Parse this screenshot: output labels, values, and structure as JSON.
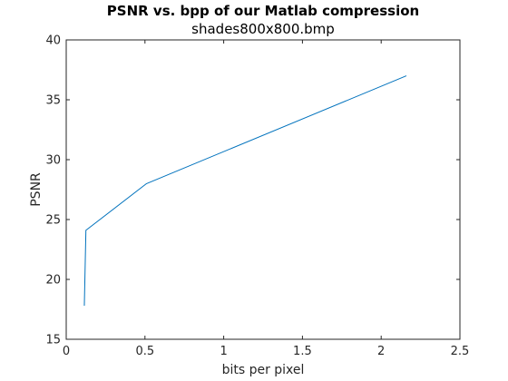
{
  "chart_data": {
    "type": "line",
    "title": "PSNR vs. bpp of our Matlab compression",
    "subtitle": "shades800x800.bmp",
    "xlabel": "bits per pixel",
    "ylabel": "PSNR",
    "xlim": [
      0,
      2.5
    ],
    "ylim": [
      15,
      40
    ],
    "xticks": [
      0,
      0.5,
      1,
      1.5,
      2,
      2.5
    ],
    "xtick_labels": [
      "0",
      "0.5",
      "1",
      "1.5",
      "2",
      "2.5"
    ],
    "yticks": [
      15,
      20,
      25,
      30,
      35,
      40
    ],
    "ytick_labels": [
      "15",
      "20",
      "25",
      "30",
      "35",
      "40"
    ],
    "grid": false,
    "series": [
      {
        "color": "#0072BD",
        "x": [
          0.115,
          0.125,
          0.51,
          2.16
        ],
        "y": [
          17.8,
          24.1,
          28.0,
          37.0
        ]
      }
    ]
  }
}
